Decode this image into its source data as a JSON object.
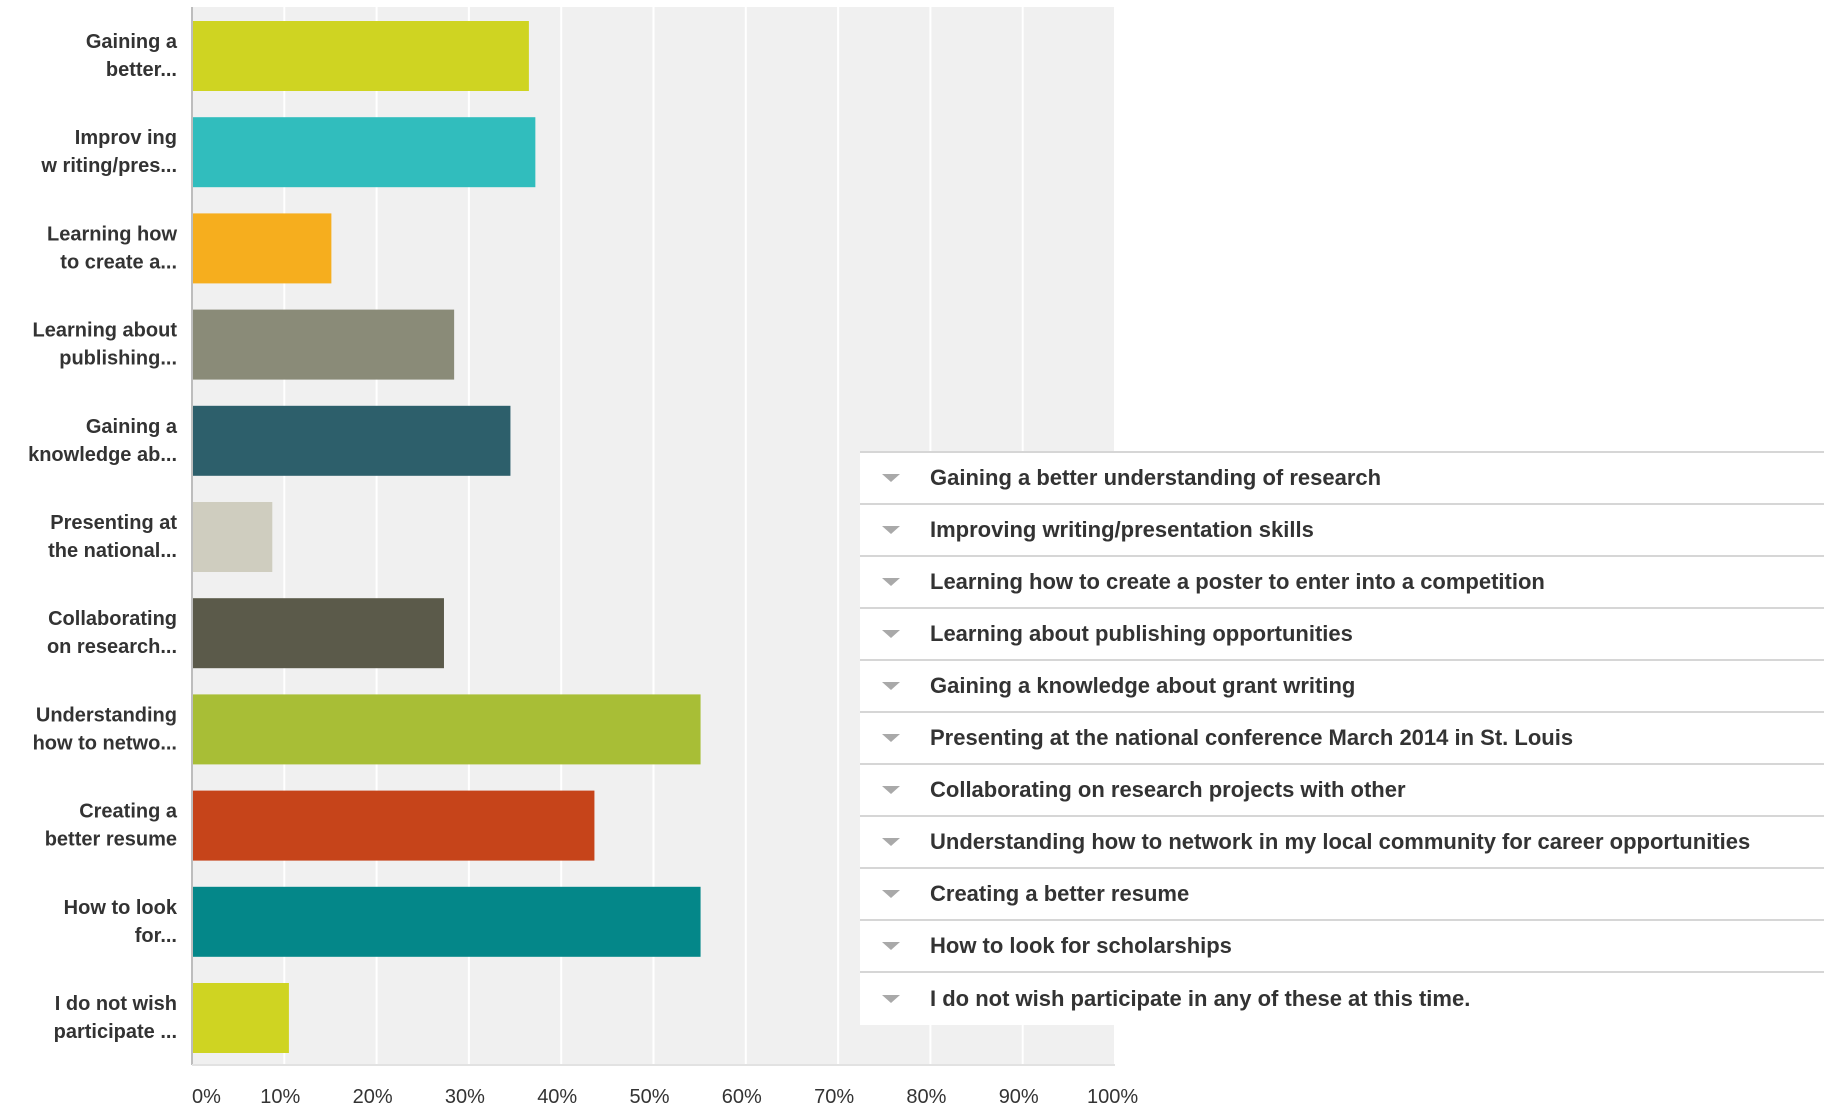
{
  "chart_data": {
    "type": "bar",
    "orientation": "horizontal",
    "x_range": [
      0,
      100
    ],
    "x_ticks": [
      "0%",
      "10%",
      "20%",
      "30%",
      "40%",
      "50%",
      "60%",
      "70%",
      "80%",
      "90%",
      "100%"
    ],
    "grid": true,
    "legend_placement": "right",
    "categories": [
      [
        "Gaining a",
        "better..."
      ],
      [
        "Improv ing",
        "w riting/pres..."
      ],
      [
        "Learning how",
        "to create a..."
      ],
      [
        "Learning about",
        "publishing..."
      ],
      [
        "Gaining a",
        "knowledge ab..."
      ],
      [
        "Presenting at",
        "the national..."
      ],
      [
        "Collaborating",
        "on research..."
      ],
      [
        "Understanding",
        "how to netwo..."
      ],
      [
        "Creating a",
        "better resume"
      ],
      [
        "How to look",
        "for..."
      ],
      [
        "I do not wish",
        "participate ..."
      ]
    ],
    "values": [
      36.5,
      37.2,
      15.1,
      28.4,
      34.5,
      8.7,
      27.3,
      55.1,
      43.6,
      55.1,
      10.5
    ],
    "colors": [
      "#cfd422",
      "#31bdbd",
      "#f6ae1e",
      "#8a8b78",
      "#2d5f6b",
      "#cfcdbf",
      "#5b5a4a",
      "#a8be36",
      "#c6441a",
      "#048789",
      "#cfd422"
    ],
    "legend": [
      "Gaining a better understanding of research",
      "Improving writing/presentation skills",
      "Learning how to create a poster to enter into a competition",
      "Learning about publishing opportunities",
      "Gaining a knowledge about grant writing",
      "Presenting at the national conference March 2014 in St. Louis",
      "Collaborating on research projects with other",
      "Understanding how to network in my local community for career opportunities",
      "Creating a better resume",
      "How to look for scholarships",
      "I do not wish participate in any of these at this time."
    ]
  }
}
